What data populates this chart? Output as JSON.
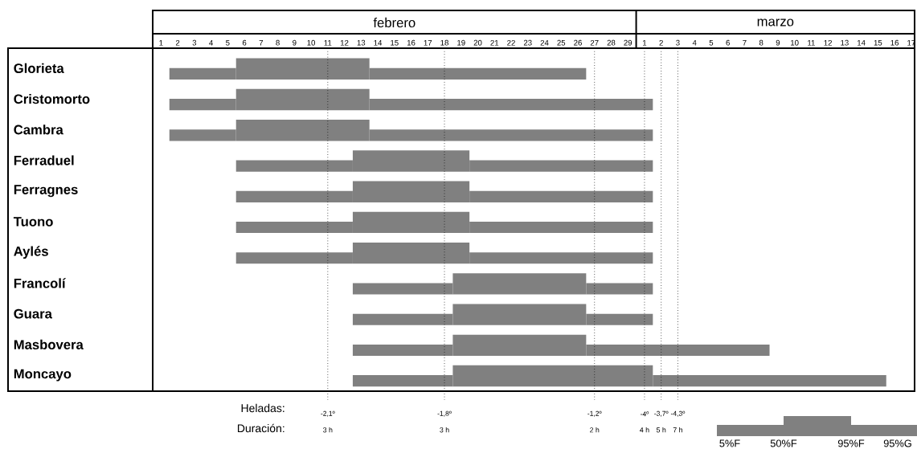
{
  "chart_data": {
    "type": "bar",
    "orientation": "horizontal",
    "categories": [
      "Glorieta",
      "Cristomorto",
      "Cambra",
      "Ferraduel",
      "Ferragnes",
      "Tuono",
      "Aylés",
      "Francolí",
      "Guara",
      "Masbovera",
      "Moncayo"
    ],
    "series": [
      {
        "color": "#808080",
        "base": [
          5.5,
          5.5,
          5.5,
          12.5,
          12.5,
          12.5,
          12.5,
          18.5,
          18.5,
          18.5,
          18.5
        ],
        "values": [
          8,
          8,
          8,
          7,
          7,
          7,
          7,
          8,
          8,
          8,
          12
        ]
      },
      {
        "color": "#808080",
        "base": [
          1.5,
          1.5,
          1.5,
          5.5,
          5.5,
          5.5,
          5.5,
          12.5,
          12.5,
          12.5,
          12.5
        ],
        "values": [
          4,
          4,
          4,
          7,
          7,
          7,
          7,
          6,
          6,
          6,
          6
        ]
      },
      {
        "color": "#808080",
        "base": [
          13.5,
          13.5,
          13.5,
          19.5,
          19.5,
          19.5,
          19.5,
          26.5,
          26.5,
          26.5,
          30.5
        ],
        "values": [
          13,
          17,
          17,
          11,
          11,
          11,
          11,
          4,
          4,
          11,
          14
        ]
      }
    ],
    "xlim": [
      0.5,
      46.2
    ],
    "xticks": [
      1,
      2,
      3,
      4,
      5,
      6,
      7,
      8,
      9,
      10,
      11,
      12,
      13,
      14,
      15,
      16,
      17,
      18,
      19,
      20,
      21,
      22,
      23,
      24,
      25,
      26,
      27,
      28,
      29
    ],
    "x2lim": [
      -28.5,
      17.2
    ],
    "x2ticks": [
      1,
      2,
      3,
      4,
      5,
      6,
      7,
      8,
      9,
      10,
      11,
      12,
      13,
      14,
      15,
      16,
      17
    ],
    "ref_lines": [
      {
        "axis": "x",
        "value": 11,
        "color": "#000000",
        "line_style": "dotted"
      },
      {
        "axis": "x",
        "value": 18,
        "color": "#000000",
        "line_style": "dotted"
      },
      {
        "axis": "x",
        "value": 27,
        "color": "#000000",
        "line_style": "dotted"
      },
      {
        "axis": "x",
        "value": 30,
        "color": "#000000",
        "line_style": "dotted"
      },
      {
        "axis": "x",
        "value": 31,
        "color": "#000000",
        "line_style": "dotted"
      },
      {
        "axis": "x",
        "value": 32,
        "color": "#000000",
        "line_style": "dotted"
      }
    ],
    "annotations": [
      "febrero",
      "marzo",
      "Heladas:",
      "Duración:",
      "-2,1º",
      "-1,8º",
      "-1,2º",
      "-4º",
      "-3,7º",
      "-4,3º",
      "3 h",
      "3 h",
      "2 h",
      "4 h",
      "5 h",
      "7 h",
      "5%F",
      "50%F",
      "95%F",
      "95%G"
    ],
    "grid": false
  }
}
